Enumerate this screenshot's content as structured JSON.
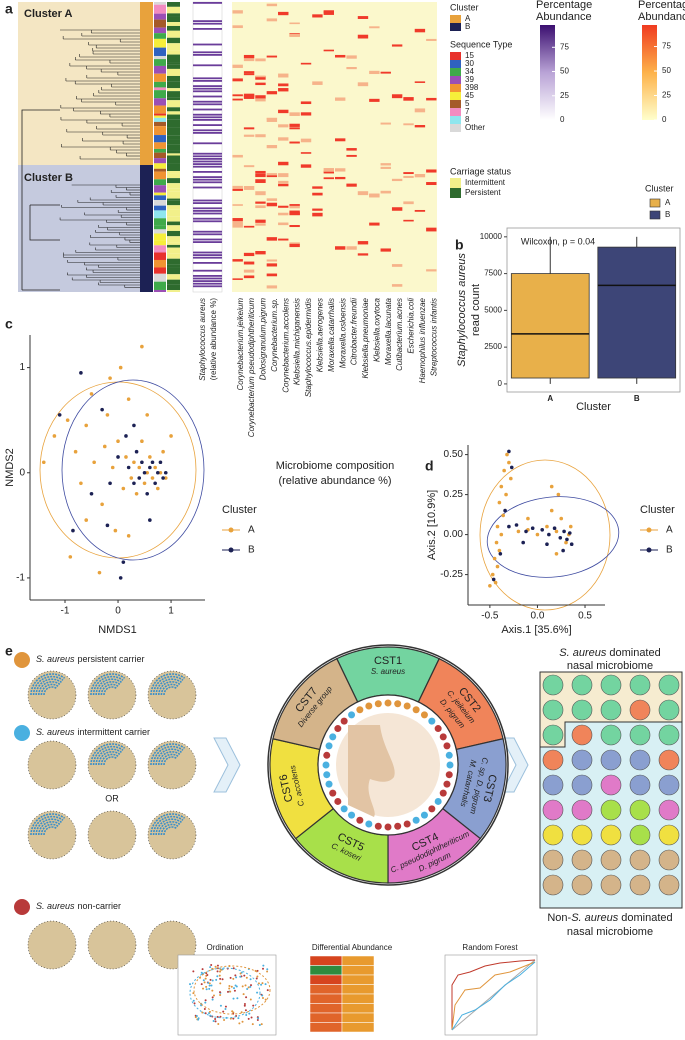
{
  "panel_labels": [
    "a",
    "b",
    "c",
    "d",
    "e"
  ],
  "heatmap": {
    "cluster_labels": [
      "Cluster A",
      "Cluster B"
    ],
    "staph_label": [
      "Staphylococcus aureus",
      "(relative abundance %)"
    ],
    "columns": [
      "Corynebacterium.jeikeium",
      "Corynebacterium pseudodiphtheriticum",
      "Dolosigranulum.pigrum",
      "Corynebacterium.sp.",
      "Corynebacterium.accolens",
      "Klebsiella.michiganensis",
      "Staphylococcus.epidermidis",
      "Klebsiella.aerogenes",
      "Moraxella.catarrhalis",
      "Moraxella.osloensis",
      "Citrobacter.freundii",
      "Klebsiella.pneumoniae",
      "Klebsiella.oxytoca",
      "Moraxella.lacunata",
      "Cutibacterium.acnes",
      "Escherichia.coli",
      "Haemophilus influenzae",
      "Streptococcus infantis"
    ],
    "cluster_legend": {
      "title": "Cluster",
      "items": [
        {
          "name": "A",
          "color": "#e8a23c"
        },
        {
          "name": "B",
          "color": "#1c2154"
        }
      ]
    },
    "sequence_type_legend": {
      "title": "Sequence Type",
      "items": [
        {
          "name": "15",
          "color": "#e8312b"
        },
        {
          "name": "30",
          "color": "#2f62c0"
        },
        {
          "name": "34",
          "color": "#3faa4a"
        },
        {
          "name": "39",
          "color": "#9b4fb5"
        },
        {
          "name": "398",
          "color": "#f19432"
        },
        {
          "name": "45",
          "color": "#f6ee3a"
        },
        {
          "name": "5",
          "color": "#a55a28"
        },
        {
          "name": "7",
          "color": "#f28cc0"
        },
        {
          "name": "8",
          "color": "#8fe6ee"
        },
        {
          "name": "Other",
          "color": "#d9d9d9"
        }
      ]
    },
    "carriage_legend": {
      "title": "Carriage status",
      "items": [
        {
          "name": "Intermittent",
          "color": "#f2f08a"
        },
        {
          "name": "Persistent",
          "color": "#2e6b2e"
        }
      ]
    },
    "colorbars": [
      {
        "title": [
          "Percentage",
          "Abundance"
        ],
        "colors": [
          "#ffffff",
          "#b9a3d6",
          "#3b0f70"
        ],
        "lim": [
          0,
          98
        ],
        "ticks": [
          0,
          25,
          50,
          75
        ]
      },
      {
        "title": [
          "Percentage",
          "Abundance"
        ],
        "colors": [
          "#ffffcc",
          "#fdb24a",
          "#f03b20"
        ],
        "lim": [
          0,
          97
        ],
        "ticks": [
          0,
          25,
          50,
          75
        ]
      }
    ]
  },
  "chart_data": [
    {
      "type": "box",
      "annotation": "Wilcoxon, p = 0.04",
      "xlabel": "Cluster",
      "ylabel": [
        "Staphylococcus aureus",
        "read count"
      ],
      "categories": [
        "A",
        "B"
      ],
      "colors": [
        "#e8b04a",
        "#3d4577"
      ],
      "boxes": [
        {
          "min": 0,
          "q1": 400,
          "median": 3400,
          "q3": 7500,
          "max": 10000
        },
        {
          "min": 0,
          "q1": 400,
          "median": 6700,
          "q3": 9300,
          "max": 10000
        }
      ],
      "ylim": [
        -550,
        10600
      ],
      "yticks": [
        0,
        2500,
        5000,
        7500,
        10000
      ],
      "legend": {
        "title": "Cluster",
        "position": "top-right"
      }
    },
    {
      "type": "scatter",
      "title": [
        "Microbiome composition",
        "(relative abundance %)"
      ],
      "xlabel": "NMDS1",
      "ylabel": "NMDS2",
      "xlim": [
        -1.66,
        1.64
      ],
      "ylim": [
        -1.21,
        1.31
      ],
      "xticks": [
        -1,
        0,
        1
      ],
      "yticks": [
        -1,
        0,
        1
      ],
      "legend": {
        "title": "Cluster",
        "position": "right"
      },
      "series": [
        {
          "name": "A",
          "color": "#e8a23c",
          "x": [
            -1.4,
            -1.2,
            -0.95,
            -0.8,
            -0.7,
            -0.6,
            -0.5,
            -0.45,
            -0.3,
            -0.25,
            -0.2,
            -0.1,
            -0.05,
            0,
            0.05,
            0.1,
            0.15,
            0.2,
            0.25,
            0.3,
            0.35,
            0.4,
            0.45,
            0.5,
            0.55,
            0.6,
            0.65,
            0.7,
            0.75,
            0.8,
            0.85,
            0.9,
            -0.9,
            -0.35,
            0.2,
            0.45,
            -0.15,
            1.0,
            0.55,
            -0.6
          ],
          "y": [
            0.1,
            0.35,
            0.5,
            0.2,
            -0.1,
            0.45,
            0.75,
            0.1,
            -0.3,
            0.25,
            0.55,
            0.05,
            -0.55,
            0.3,
            1.0,
            -0.15,
            0.15,
            0.7,
            -0.05,
            0.1,
            -0.2,
            0.05,
            0.3,
            -0.1,
            0.0,
            0.15,
            -0.05,
            0.05,
            -0.15,
            0.0,
            0.2,
            -0.05,
            -0.8,
            -0.95,
            -0.6,
            1.2,
            0.9,
            0.35,
            0.55,
            -0.45
          ]
        },
        {
          "name": "B",
          "color": "#1c2154",
          "x": [
            -1.1,
            -0.85,
            -0.7,
            -0.5,
            -0.3,
            -0.15,
            0,
            0.1,
            0.2,
            0.3,
            0.35,
            0.4,
            0.45,
            0.5,
            0.55,
            0.6,
            0.65,
            0.7,
            0.75,
            0.8,
            0.85,
            0.9,
            0.3,
            0.15,
            -0.2,
            0.6,
            0.05
          ],
          "y": [
            0.55,
            -0.55,
            0.95,
            -0.2,
            0.6,
            -0.1,
            0.15,
            -0.85,
            0.05,
            -0.1,
            0.2,
            -0.05,
            0.1,
            0.0,
            -0.2,
            0.05,
            0.1,
            -0.1,
            0.0,
            0.1,
            -0.05,
            0.0,
            0.45,
            0.35,
            -0.5,
            -0.45,
            -1.0
          ]
        }
      ]
    },
    {
      "type": "scatter",
      "xlabel": "Axis.1 [35.6%]",
      "ylabel": "Axis.2 [10.9%]",
      "xlim": [
        -0.73,
        0.71
      ],
      "ylim": [
        -0.44,
        0.56
      ],
      "xticks": [
        -0.5,
        {
          "value": 0,
          "label": "0.0"
        },
        0.5
      ],
      "yticks": [
        -0.25,
        {
          "value": 0,
          "label": "0.00"
        },
        0.25,
        {
          "value": 0.5,
          "label": "0.50"
        }
      ],
      "legend": {
        "title": "Cluster",
        "position": "right"
      },
      "series": [
        {
          "name": "A",
          "color": "#e8a23c",
          "x": [
            -0.32,
            -0.3,
            -0.35,
            -0.28,
            -0.38,
            -0.33,
            -0.4,
            -0.36,
            -0.42,
            -0.38,
            -0.43,
            -0.4,
            -0.45,
            -0.42,
            -0.47,
            -0.44,
            -0.5,
            -0.2,
            -0.1,
            0,
            0.1,
            0.15,
            0.2,
            0.25,
            0.3,
            0.33,
            0.35,
            0.2,
            0.15,
            0.22,
            -0.1
          ],
          "y": [
            0.5,
            0.45,
            0.4,
            0.35,
            0.3,
            0.25,
            0.2,
            0.12,
            0.05,
            0.0,
            -0.05,
            -0.1,
            -0.15,
            -0.2,
            -0.25,
            -0.3,
            -0.32,
            0.02,
            0.03,
            0.0,
            0.05,
            0.15,
            0.02,
            0.1,
            -0.05,
            0.0,
            0.05,
            -0.12,
            0.3,
            0.25,
            0.1
          ]
        },
        {
          "name": "B",
          "color": "#1c2154",
          "x": [
            -0.3,
            -0.27,
            -0.34,
            -0.39,
            -0.46,
            -0.3,
            -0.22,
            -0.12,
            -0.05,
            0.05,
            0.12,
            0.18,
            0.24,
            0.28,
            0.31,
            0.34,
            0.36,
            0.27,
            0.1,
            -0.15
          ],
          "y": [
            0.52,
            0.42,
            0.15,
            -0.12,
            -0.28,
            0.05,
            0.06,
            0.02,
            0.04,
            0.03,
            0.0,
            0.04,
            -0.02,
            0.02,
            -0.03,
            0.01,
            -0.06,
            -0.1,
            -0.06,
            -0.05
          ]
        }
      ]
    }
  ],
  "schematic": {
    "groups": [
      {
        "species": "S. aureus",
        "label": "persistent carrier"
      },
      {
        "species": "S. aureus",
        "label": "intermittent carrier"
      },
      {
        "species": "S. aureus",
        "label": "non-carrier"
      }
    ],
    "or": "OR",
    "csts": [
      {
        "name": "CST1",
        "taxa": [
          "S. aureus"
        ],
        "color": "#73d4a0"
      },
      {
        "name": "CST2",
        "taxa": [
          "C. jeikeium",
          "D. pigrum"
        ],
        "color": "#f0845a"
      },
      {
        "name": "CST3",
        "taxa": [
          "C. sp, D. pigrum",
          "M. catarrhalis"
        ],
        "color": "#8a9fd0"
      },
      {
        "name": "CST4",
        "taxa": [
          "C. pseudodiphtheriticum",
          "D. pigrum"
        ],
        "color": "#e07ac8"
      },
      {
        "name": "CST5",
        "taxa": [
          "C. koseri"
        ],
        "color": "#a8e04a"
      },
      {
        "name": "CST6",
        "taxa": [
          "C. accolens"
        ],
        "color": "#f0e040"
      },
      {
        "name": "CST7",
        "taxa": [
          "Diverse group"
        ],
        "color": "#d4b48a"
      }
    ],
    "right_top": {
      "species": "S. aureus",
      "rest": "dominated",
      "line2": "nasal microbiome"
    },
    "right_bottom": {
      "prefix": "Non-",
      "species": "S. aureus",
      "rest": "dominated",
      "line2": "nasal microbiome"
    },
    "methods": [
      "Ordination",
      "Differential Abundance",
      "Random Forest"
    ]
  }
}
